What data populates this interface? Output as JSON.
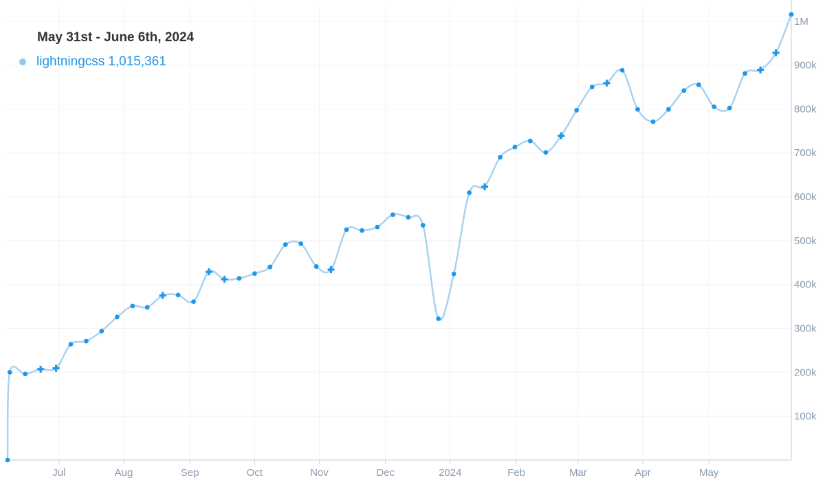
{
  "legend": {
    "date_range": "May 31st - June 6th, 2024",
    "series_label": "lightningcss",
    "series_value": "1,015,361"
  },
  "colors": {
    "line": "#a6d3f2",
    "marker": "#2196e8",
    "grid": "#f0f2f5",
    "axis": "#c9d8e6",
    "tick_text": "#8a9bb0"
  },
  "chart_data": {
    "type": "line",
    "title": "May 31st - June 6th, 2024",
    "xlabel": "",
    "ylabel": "",
    "ylim": [
      0,
      1020000
    ],
    "x_start_week": 0,
    "x_end_week": 53.3,
    "grid": true,
    "legend_position": "top-left",
    "x_tick_labels": [
      {
        "label": "Jul",
        "week": 3.5
      },
      {
        "label": "Aug",
        "week": 7.9
      },
      {
        "label": "Sep",
        "week": 12.4
      },
      {
        "label": "Oct",
        "week": 16.8
      },
      {
        "label": "Nov",
        "week": 21.2
      },
      {
        "label": "Dec",
        "week": 25.7
      },
      {
        "label": "2024",
        "week": 30.1
      },
      {
        "label": "Feb",
        "week": 34.6
      },
      {
        "label": "Mar",
        "week": 38.8
      },
      {
        "label": "Apr",
        "week": 43.2
      },
      {
        "label": "May",
        "week": 47.7
      }
    ],
    "y_tick_labels": [
      {
        "label": "100k",
        "value": 100000
      },
      {
        "label": "200k",
        "value": 200000
      },
      {
        "label": "300k",
        "value": 300000
      },
      {
        "label": "400k",
        "value": 400000
      },
      {
        "label": "500k",
        "value": 500000
      },
      {
        "label": "600k",
        "value": 600000
      },
      {
        "label": "700k",
        "value": 700000
      },
      {
        "label": "800k",
        "value": 800000
      },
      {
        "label": "900k",
        "value": 900000
      },
      {
        "label": "1M",
        "value": 1000000
      }
    ],
    "series": [
      {
        "name": "lightningcss",
        "points": [
          {
            "week": 0,
            "value": 0,
            "marker": "dot"
          },
          {
            "week": 0.15,
            "value": 200000,
            "marker": "dot"
          },
          {
            "week": 1.2,
            "value": 196000,
            "marker": "dot"
          },
          {
            "week": 2.25,
            "value": 207000,
            "marker": "plus"
          },
          {
            "week": 3.3,
            "value": 209000,
            "marker": "plus"
          },
          {
            "week": 4.3,
            "value": 264000,
            "marker": "dot"
          },
          {
            "week": 5.35,
            "value": 271000,
            "marker": "dot"
          },
          {
            "week": 6.4,
            "value": 294000,
            "marker": "dot"
          },
          {
            "week": 7.45,
            "value": 326000,
            "marker": "dot"
          },
          {
            "week": 8.5,
            "value": 351000,
            "marker": "dot"
          },
          {
            "week": 9.5,
            "value": 348000,
            "marker": "dot"
          },
          {
            "week": 10.55,
            "value": 375000,
            "marker": "plus"
          },
          {
            "week": 11.6,
            "value": 376000,
            "marker": "dot"
          },
          {
            "week": 12.65,
            "value": 361000,
            "marker": "dot"
          },
          {
            "week": 13.7,
            "value": 429000,
            "marker": "plus"
          },
          {
            "week": 14.75,
            "value": 412000,
            "marker": "plus"
          },
          {
            "week": 15.75,
            "value": 414000,
            "marker": "dot"
          },
          {
            "week": 16.8,
            "value": 425000,
            "marker": "dot"
          },
          {
            "week": 17.85,
            "value": 440000,
            "marker": "dot"
          },
          {
            "week": 18.9,
            "value": 491000,
            "marker": "dot"
          },
          {
            "week": 19.95,
            "value": 493000,
            "marker": "dot"
          },
          {
            "week": 21.0,
            "value": 441000,
            "marker": "dot"
          },
          {
            "week": 22.0,
            "value": 434000,
            "marker": "plus"
          },
          {
            "week": 23.05,
            "value": 525000,
            "marker": "dot"
          },
          {
            "week": 24.1,
            "value": 523000,
            "marker": "dot"
          },
          {
            "week": 25.15,
            "value": 531000,
            "marker": "dot"
          },
          {
            "week": 26.2,
            "value": 559000,
            "marker": "dot"
          },
          {
            "week": 27.25,
            "value": 553000,
            "marker": "dot"
          },
          {
            "week": 28.25,
            "value": 535000,
            "marker": "dot"
          },
          {
            "week": 29.3,
            "value": 322000,
            "marker": "dot"
          },
          {
            "week": 30.35,
            "value": 424000,
            "marker": "dot"
          },
          {
            "week": 31.4,
            "value": 609000,
            "marker": "dot"
          },
          {
            "week": 32.45,
            "value": 623000,
            "marker": "plus"
          },
          {
            "week": 33.5,
            "value": 690000,
            "marker": "dot"
          },
          {
            "week": 34.5,
            "value": 713000,
            "marker": "dot"
          },
          {
            "week": 35.55,
            "value": 727000,
            "marker": "dot"
          },
          {
            "week": 36.6,
            "value": 701000,
            "marker": "dot"
          },
          {
            "week": 37.65,
            "value": 739000,
            "marker": "plus"
          },
          {
            "week": 38.7,
            "value": 797000,
            "marker": "dot"
          },
          {
            "week": 39.75,
            "value": 850000,
            "marker": "dot"
          },
          {
            "week": 40.75,
            "value": 859000,
            "marker": "plus"
          },
          {
            "week": 41.8,
            "value": 888000,
            "marker": "dot"
          },
          {
            "week": 42.85,
            "value": 799000,
            "marker": "dot"
          },
          {
            "week": 43.9,
            "value": 771000,
            "marker": "dot"
          },
          {
            "week": 44.95,
            "value": 799000,
            "marker": "dot"
          },
          {
            "week": 46.0,
            "value": 842000,
            "marker": "dot"
          },
          {
            "week": 47.0,
            "value": 855000,
            "marker": "dot"
          },
          {
            "week": 48.05,
            "value": 805000,
            "marker": "dot"
          },
          {
            "week": 49.1,
            "value": 802000,
            "marker": "dot"
          },
          {
            "week": 50.15,
            "value": 881000,
            "marker": "dot"
          },
          {
            "week": 51.2,
            "value": 889000,
            "marker": "plus"
          },
          {
            "week": 52.25,
            "value": 928000,
            "marker": "plus"
          },
          {
            "week": 53.3,
            "value": 1015361,
            "marker": "dot"
          }
        ]
      }
    ]
  }
}
